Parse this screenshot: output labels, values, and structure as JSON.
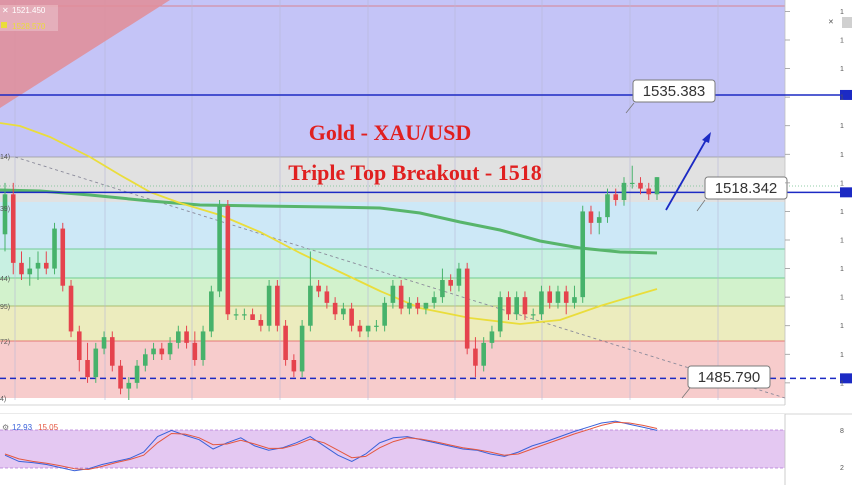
{
  "chart_data": {
    "type": "candlestick",
    "title": "Gold - XAU/USD",
    "subtitle": "Triple Top Breakout - 1518",
    "symbol_legend": [
      "1521.450",
      "1528.570"
    ],
    "indicator_legend": [
      "12.93",
      "15.05"
    ],
    "ylim": [
      1482,
      1552
    ],
    "levels": [
      {
        "label": "1535.383",
        "value": 1535.383,
        "style": "solid",
        "color": "#1c2ac4"
      },
      {
        "label": "1518.342",
        "value": 1518.342,
        "style": "solid",
        "color": "#1c2ac4"
      },
      {
        "label": "1485.790",
        "value": 1485.79,
        "style": "dashed",
        "color": "#1c2ac4"
      }
    ],
    "candles": [
      {
        "o": 1511,
        "h": 1520,
        "l": 1508,
        "c": 1518
      },
      {
        "o": 1518,
        "h": 1520,
        "l": 1504,
        "c": 1506
      },
      {
        "o": 1506,
        "h": 1508,
        "l": 1503,
        "c": 1504
      },
      {
        "o": 1504,
        "h": 1507,
        "l": 1502,
        "c": 1505
      },
      {
        "o": 1505,
        "h": 1508,
        "l": 1503,
        "c": 1506
      },
      {
        "o": 1506,
        "h": 1508,
        "l": 1504,
        "c": 1505
      },
      {
        "o": 1505,
        "h": 1513,
        "l": 1504,
        "c": 1512
      },
      {
        "o": 1512,
        "h": 1513,
        "l": 1501,
        "c": 1502
      },
      {
        "o": 1502,
        "h": 1503,
        "l": 1493,
        "c": 1494
      },
      {
        "o": 1494,
        "h": 1495,
        "l": 1487,
        "c": 1489
      },
      {
        "o": 1489,
        "h": 1492,
        "l": 1485,
        "c": 1486
      },
      {
        "o": 1486,
        "h": 1492,
        "l": 1485,
        "c": 1491
      },
      {
        "o": 1491,
        "h": 1494,
        "l": 1490,
        "c": 1493
      },
      {
        "o": 1493,
        "h": 1494,
        "l": 1487,
        "c": 1488
      },
      {
        "o": 1488,
        "h": 1489,
        "l": 1483,
        "c": 1484
      },
      {
        "o": 1484,
        "h": 1486,
        "l": 1482,
        "c": 1485
      },
      {
        "o": 1485,
        "h": 1489,
        "l": 1484,
        "c": 1488
      },
      {
        "o": 1488,
        "h": 1491,
        "l": 1487,
        "c": 1490
      },
      {
        "o": 1490,
        "h": 1492,
        "l": 1489,
        "c": 1491
      },
      {
        "o": 1491,
        "h": 1492,
        "l": 1489,
        "c": 1490
      },
      {
        "o": 1490,
        "h": 1493,
        "l": 1489,
        "c": 1492
      },
      {
        "o": 1492,
        "h": 1495,
        "l": 1491,
        "c": 1494
      },
      {
        "o": 1494,
        "h": 1495,
        "l": 1491,
        "c": 1492
      },
      {
        "o": 1492,
        "h": 1494,
        "l": 1488,
        "c": 1489
      },
      {
        "o": 1489,
        "h": 1495,
        "l": 1488,
        "c": 1494
      },
      {
        "o": 1494,
        "h": 1502,
        "l": 1493,
        "c": 1501
      },
      {
        "o": 1501,
        "h": 1517,
        "l": 1500,
        "c": 1516
      },
      {
        "o": 1516,
        "h": 1517,
        "l": 1496,
        "c": 1497
      },
      {
        "o": 1497,
        "h": 1498,
        "l": 1496,
        "c": 1497
      },
      {
        "o": 1497,
        "h": 1498,
        "l": 1496,
        "c": 1497
      },
      {
        "o": 1497,
        "h": 1498,
        "l": 1496,
        "c": 1496
      },
      {
        "o": 1496,
        "h": 1497,
        "l": 1494,
        "c": 1495
      },
      {
        "o": 1495,
        "h": 1503,
        "l": 1494,
        "c": 1502
      },
      {
        "o": 1502,
        "h": 1503,
        "l": 1494,
        "c": 1495
      },
      {
        "o": 1495,
        "h": 1496,
        "l": 1488,
        "c": 1489
      },
      {
        "o": 1489,
        "h": 1490,
        "l": 1486,
        "c": 1487
      },
      {
        "o": 1487,
        "h": 1496,
        "l": 1486,
        "c": 1495
      },
      {
        "o": 1495,
        "h": 1508,
        "l": 1494,
        "c": 1502
      },
      {
        "o": 1502,
        "h": 1503,
        "l": 1500,
        "c": 1501
      },
      {
        "o": 1501,
        "h": 1502,
        "l": 1498,
        "c": 1499
      },
      {
        "o": 1499,
        "h": 1500,
        "l": 1496,
        "c": 1497
      },
      {
        "o": 1497,
        "h": 1499,
        "l": 1496,
        "c": 1498
      },
      {
        "o": 1498,
        "h": 1499,
        "l": 1494,
        "c": 1495
      },
      {
        "o": 1495,
        "h": 1496,
        "l": 1493,
        "c": 1494
      },
      {
        "o": 1494,
        "h": 1495,
        "l": 1493,
        "c": 1495
      },
      {
        "o": 1495,
        "h": 1496,
        "l": 1494,
        "c": 1495
      },
      {
        "o": 1495,
        "h": 1500,
        "l": 1494,
        "c": 1499
      },
      {
        "o": 1499,
        "h": 1503,
        "l": 1498,
        "c": 1502
      },
      {
        "o": 1502,
        "h": 1503,
        "l": 1497,
        "c": 1498
      },
      {
        "o": 1498,
        "h": 1500,
        "l": 1497,
        "c": 1499
      },
      {
        "o": 1499,
        "h": 1500,
        "l": 1497,
        "c": 1498
      },
      {
        "o": 1498,
        "h": 1499,
        "l": 1497,
        "c": 1499
      },
      {
        "o": 1499,
        "h": 1501,
        "l": 1498,
        "c": 1500
      },
      {
        "o": 1500,
        "h": 1505,
        "l": 1499,
        "c": 1503
      },
      {
        "o": 1503,
        "h": 1504,
        "l": 1501,
        "c": 1502
      },
      {
        "o": 1502,
        "h": 1506,
        "l": 1501,
        "c": 1505
      },
      {
        "o": 1505,
        "h": 1506,
        "l": 1490,
        "c": 1491
      },
      {
        "o": 1491,
        "h": 1493,
        "l": 1486,
        "c": 1488
      },
      {
        "o": 1488,
        "h": 1493,
        "l": 1487,
        "c": 1492
      },
      {
        "o": 1492,
        "h": 1495,
        "l": 1491,
        "c": 1494
      },
      {
        "o": 1494,
        "h": 1501,
        "l": 1493,
        "c": 1500
      },
      {
        "o": 1500,
        "h": 1501,
        "l": 1496,
        "c": 1497
      },
      {
        "o": 1497,
        "h": 1501,
        "l": 1496,
        "c": 1500
      },
      {
        "o": 1500,
        "h": 1501,
        "l": 1496,
        "c": 1497
      },
      {
        "o": 1497,
        "h": 1498,
        "l": 1496,
        "c": 1497
      },
      {
        "o": 1497,
        "h": 1502,
        "l": 1496,
        "c": 1501
      },
      {
        "o": 1501,
        "h": 1502,
        "l": 1498,
        "c": 1499
      },
      {
        "o": 1499,
        "h": 1502,
        "l": 1498,
        "c": 1501
      },
      {
        "o": 1501,
        "h": 1502,
        "l": 1497,
        "c": 1499
      },
      {
        "o": 1499,
        "h": 1502,
        "l": 1498,
        "c": 1500
      },
      {
        "o": 1500,
        "h": 1516,
        "l": 1499,
        "c": 1515
      },
      {
        "o": 1515,
        "h": 1516,
        "l": 1511,
        "c": 1513
      },
      {
        "o": 1513,
        "h": 1515,
        "l": 1511,
        "c": 1514
      },
      {
        "o": 1514,
        "h": 1519,
        "l": 1513,
        "c": 1518
      },
      {
        "o": 1518,
        "h": 1519,
        "l": 1516,
        "c": 1517
      },
      {
        "o": 1517,
        "h": 1521,
        "l": 1516,
        "c": 1520
      },
      {
        "o": 1520,
        "h": 1523,
        "l": 1519,
        "c": 1520
      },
      {
        "o": 1520,
        "h": 1521,
        "l": 1518,
        "c": 1519
      },
      {
        "o": 1519,
        "h": 1520,
        "l": 1517,
        "c": 1518
      },
      {
        "o": 1518,
        "h": 1521,
        "l": 1517,
        "c": 1521
      }
    ],
    "indicator_type": "oscillator",
    "k_line": [
      40,
      30,
      28,
      25,
      20,
      15,
      18,
      25,
      30,
      35,
      45,
      70,
      80,
      72,
      65,
      50,
      60,
      68,
      55,
      48,
      52,
      60,
      70,
      55,
      40,
      30,
      42,
      60,
      68,
      70,
      65,
      60,
      55,
      50,
      48,
      42,
      38,
      45,
      55,
      62,
      70,
      78,
      85,
      92,
      95,
      90,
      85,
      80
    ],
    "d_line": [
      42,
      34,
      30,
      27,
      23,
      18,
      17,
      22,
      28,
      33,
      40,
      60,
      75,
      74,
      68,
      57,
      58,
      64,
      58,
      51,
      51,
      57,
      66,
      60,
      48,
      36,
      38,
      52,
      62,
      68,
      66,
      62,
      57,
      52,
      49,
      45,
      40,
      42,
      50,
      58,
      66,
      74,
      81,
      88,
      93,
      92,
      88,
      83
    ]
  }
}
